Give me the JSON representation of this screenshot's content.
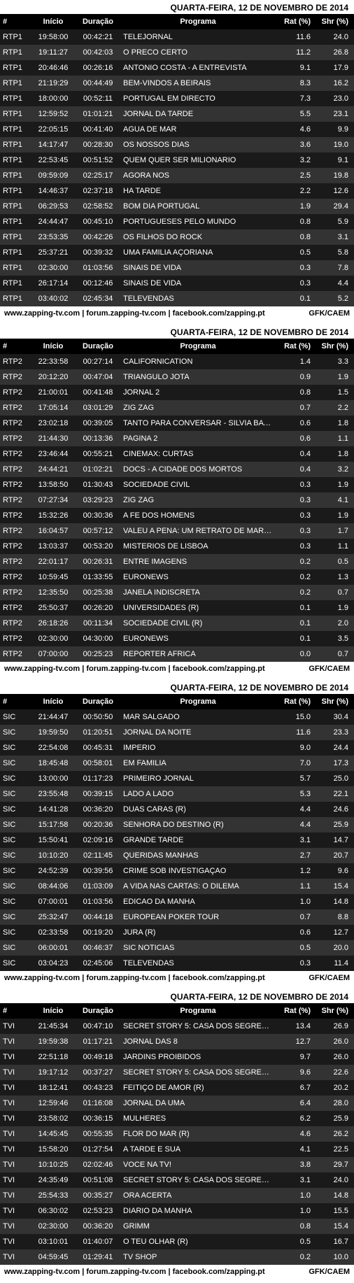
{
  "date_label": "QUARTA-FEIRA, 12 DE NOVEMBRO DE 2014",
  "headers": {
    "ch": "#",
    "start": "Início",
    "dur": "Duração",
    "prog": "Programa",
    "rat": "Rat (%)",
    "shr": "Shr (%)"
  },
  "footer_left": "www.zapping-tv.com | forum.zapping-tv.com | facebook.com/zapping.pt",
  "footer_right": "GFK/CAEM",
  "tables": [
    {
      "channel": "RTP1",
      "rows": [
        {
          "start": "19:58:00",
          "dur": "00:42:21",
          "prog": "TELEJORNAL",
          "rat": "11.6",
          "shr": "24.0"
        },
        {
          "start": "19:11:27",
          "dur": "00:42:03",
          "prog": "O PRECO CERTO",
          "rat": "11.2",
          "shr": "26.8"
        },
        {
          "start": "20:46:46",
          "dur": "00:26:16",
          "prog": "ANTONIO COSTA - A ENTREVISTA",
          "rat": "9.1",
          "shr": "17.9"
        },
        {
          "start": "21:19:29",
          "dur": "00:44:49",
          "prog": "BEM-VINDOS A BEIRAIS",
          "rat": "8.3",
          "shr": "16.2"
        },
        {
          "start": "18:00:00",
          "dur": "00:52:11",
          "prog": "PORTUGAL EM DIRECTO",
          "rat": "7.3",
          "shr": "23.0"
        },
        {
          "start": "12:59:52",
          "dur": "01:01:21",
          "prog": "JORNAL DA TARDE",
          "rat": "5.5",
          "shr": "23.1"
        },
        {
          "start": "22:05:15",
          "dur": "00:41:40",
          "prog": "AGUA DE MAR",
          "rat": "4.6",
          "shr": "9.9"
        },
        {
          "start": "14:17:47",
          "dur": "00:28:30",
          "prog": "OS NOSSOS DIAS",
          "rat": "3.6",
          "shr": "19.0"
        },
        {
          "start": "22:53:45",
          "dur": "00:51:52",
          "prog": "QUEM QUER SER MILIONARIO",
          "rat": "3.2",
          "shr": "9.1"
        },
        {
          "start": "09:59:09",
          "dur": "02:25:17",
          "prog": "AGORA NOS",
          "rat": "2.5",
          "shr": "19.8"
        },
        {
          "start": "14:46:37",
          "dur": "02:37:18",
          "prog": "HA TARDE",
          "rat": "2.2",
          "shr": "12.6"
        },
        {
          "start": "06:29:53",
          "dur": "02:58:52",
          "prog": "BOM DIA PORTUGAL",
          "rat": "1.9",
          "shr": "29.4"
        },
        {
          "start": "24:44:47",
          "dur": "00:45:10",
          "prog": "PORTUGUESES PELO MUNDO",
          "rat": "0.8",
          "shr": "5.9"
        },
        {
          "start": "23:53:35",
          "dur": "00:42:26",
          "prog": "OS FILHOS DO ROCK",
          "rat": "0.8",
          "shr": "3.1"
        },
        {
          "start": "25:37:21",
          "dur": "00:39:32",
          "prog": "UMA FAMILIA AÇORIANA",
          "rat": "0.5",
          "shr": "5.8"
        },
        {
          "start": "02:30:00",
          "dur": "01:03:56",
          "prog": "SINAIS DE VIDA",
          "rat": "0.3",
          "shr": "7.8"
        },
        {
          "start": "26:17:14",
          "dur": "00:12:46",
          "prog": "SINAIS DE VIDA",
          "rat": "0.3",
          "shr": "4.4"
        },
        {
          "start": "03:40:02",
          "dur": "02:45:34",
          "prog": "TELEVENDAS",
          "rat": "0.1",
          "shr": "5.2"
        }
      ]
    },
    {
      "channel": "RTP2",
      "rows": [
        {
          "start": "22:33:58",
          "dur": "00:27:14",
          "prog": "CALIFORNICATION",
          "rat": "1.4",
          "shr": "3.3"
        },
        {
          "start": "20:12:20",
          "dur": "00:47:04",
          "prog": "TRIANGULO JOTA",
          "rat": "0.9",
          "shr": "1.9"
        },
        {
          "start": "21:00:01",
          "dur": "00:41:48",
          "prog": "JORNAL 2",
          "rat": "0.8",
          "shr": "1.5"
        },
        {
          "start": "17:05:14",
          "dur": "03:01:29",
          "prog": "ZIG ZAG",
          "rat": "0.7",
          "shr": "2.2"
        },
        {
          "start": "23:02:18",
          "dur": "00:39:05",
          "prog": "TANTO PARA CONVERSAR - SILVIA BATISTA",
          "rat": "0.6",
          "shr": "1.8"
        },
        {
          "start": "21:44:30",
          "dur": "00:13:36",
          "prog": "PAGINA 2",
          "rat": "0.6",
          "shr": "1.1"
        },
        {
          "start": "23:46:44",
          "dur": "00:55:21",
          "prog": "CINEMAX: CURTAS",
          "rat": "0.4",
          "shr": "1.8"
        },
        {
          "start": "24:44:21",
          "dur": "01:02:21",
          "prog": "DOCS - A CIDADE DOS MORTOS",
          "rat": "0.4",
          "shr": "3.2"
        },
        {
          "start": "13:58:50",
          "dur": "01:30:43",
          "prog": "SOCIEDADE CIVIL",
          "rat": "0.3",
          "shr": "1.9"
        },
        {
          "start": "07:27:34",
          "dur": "03:29:23",
          "prog": "ZIG ZAG",
          "rat": "0.3",
          "shr": "4.1"
        },
        {
          "start": "15:32:26",
          "dur": "00:30:36",
          "prog": "A FE DOS HOMENS",
          "rat": "0.3",
          "shr": "1.9"
        },
        {
          "start": "16:04:57",
          "dur": "00:57:12",
          "prog": "VALEU A PENA: UM RETRATO DE MARIO...",
          "rat": "0.3",
          "shr": "1.7"
        },
        {
          "start": "13:03:37",
          "dur": "00:53:20",
          "prog": "MISTERIOS DE LISBOA",
          "rat": "0.3",
          "shr": "1.1"
        },
        {
          "start": "22:01:17",
          "dur": "00:26:31",
          "prog": "ENTRE IMAGENS",
          "rat": "0.2",
          "shr": "0.5"
        },
        {
          "start": "10:59:45",
          "dur": "01:33:55",
          "prog": "EURONEWS",
          "rat": "0.2",
          "shr": "1.3"
        },
        {
          "start": "12:35:50",
          "dur": "00:25:38",
          "prog": "JANELA INDISCRETA",
          "rat": "0.2",
          "shr": "0.7"
        },
        {
          "start": "25:50:37",
          "dur": "00:26:20",
          "prog": "UNIVERSIDADES (R)",
          "rat": "0.1",
          "shr": "1.9"
        },
        {
          "start": "26:18:26",
          "dur": "00:11:34",
          "prog": "SOCIEDADE CIVIL (R)",
          "rat": "0.1",
          "shr": "2.0"
        },
        {
          "start": "02:30:00",
          "dur": "04:30:00",
          "prog": "EURONEWS",
          "rat": "0.1",
          "shr": "3.5"
        },
        {
          "start": "07:00:00",
          "dur": "00:25:23",
          "prog": "REPORTER AFRICA",
          "rat": "0.0",
          "shr": "0.7"
        }
      ]
    },
    {
      "channel": "SIC",
      "rows": [
        {
          "start": "21:44:47",
          "dur": "00:50:50",
          "prog": "MAR SALGADO",
          "rat": "15.0",
          "shr": "30.4"
        },
        {
          "start": "19:59:50",
          "dur": "01:20:51",
          "prog": "JORNAL DA NOITE",
          "rat": "11.6",
          "shr": "23.3"
        },
        {
          "start": "22:54:08",
          "dur": "00:45:31",
          "prog": "IMPERIO",
          "rat": "9.0",
          "shr": "24.4"
        },
        {
          "start": "18:45:48",
          "dur": "00:58:01",
          "prog": "EM FAMILIA",
          "rat": "7.0",
          "shr": "17.3"
        },
        {
          "start": "13:00:00",
          "dur": "01:17:23",
          "prog": "PRIMEIRO JORNAL",
          "rat": "5.7",
          "shr": "25.0"
        },
        {
          "start": "23:55:48",
          "dur": "00:39:15",
          "prog": "LADO A LADO",
          "rat": "5.3",
          "shr": "22.1"
        },
        {
          "start": "14:41:28",
          "dur": "00:36:20",
          "prog": "DUAS CARAS (R)",
          "rat": "4.4",
          "shr": "24.6"
        },
        {
          "start": "15:17:58",
          "dur": "00:20:36",
          "prog": "SENHORA DO DESTINO (R)",
          "rat": "4.4",
          "shr": "25.9"
        },
        {
          "start": "15:50:41",
          "dur": "02:09:16",
          "prog": "GRANDE TARDE",
          "rat": "3.1",
          "shr": "14.7"
        },
        {
          "start": "10:10:20",
          "dur": "02:11:45",
          "prog": "QUERIDAS MANHAS",
          "rat": "2.7",
          "shr": "20.7"
        },
        {
          "start": "24:52:39",
          "dur": "00:39:56",
          "prog": "CRIME SOB INVESTIGAÇAO",
          "rat": "1.2",
          "shr": "9.6"
        },
        {
          "start": "08:44:06",
          "dur": "01:03:09",
          "prog": "A VIDA NAS CARTAS: O DILEMA",
          "rat": "1.1",
          "shr": "15.4"
        },
        {
          "start": "07:00:01",
          "dur": "01:03:56",
          "prog": "EDICAO DA MANHA",
          "rat": "1.0",
          "shr": "14.8"
        },
        {
          "start": "25:32:47",
          "dur": "00:44:18",
          "prog": "EUROPEAN POKER TOUR",
          "rat": "0.7",
          "shr": "8.8"
        },
        {
          "start": "02:33:58",
          "dur": "00:19:20",
          "prog": "JURA (R)",
          "rat": "0.6",
          "shr": "12.7"
        },
        {
          "start": "06:00:01",
          "dur": "00:46:37",
          "prog": "SIC NOTICIAS",
          "rat": "0.5",
          "shr": "20.0"
        },
        {
          "start": "03:04:23",
          "dur": "02:45:06",
          "prog": "TELEVENDAS",
          "rat": "0.3",
          "shr": "11.4"
        }
      ]
    },
    {
      "channel": "TVI",
      "rows": [
        {
          "start": "21:45:34",
          "dur": "00:47:10",
          "prog": "SECRET STORY 5: CASA DOS SEGREDOS -...",
          "rat": "13.4",
          "shr": "26.9"
        },
        {
          "start": "19:59:38",
          "dur": "01:17:21",
          "prog": "JORNAL DAS 8",
          "rat": "12.7",
          "shr": "26.0"
        },
        {
          "start": "22:51:18",
          "dur": "00:49:18",
          "prog": "JARDINS PROIBIDOS",
          "rat": "9.7",
          "shr": "26.0"
        },
        {
          "start": "19:17:12",
          "dur": "00:37:27",
          "prog": "SECRET STORY 5: CASA DOS SEGREDOS -...",
          "rat": "9.6",
          "shr": "22.6"
        },
        {
          "start": "18:12:41",
          "dur": "00:43:23",
          "prog": "FEITIÇO DE AMOR (R)",
          "rat": "6.7",
          "shr": "20.2"
        },
        {
          "start": "12:59:46",
          "dur": "01:16:08",
          "prog": "JORNAL DA UMA",
          "rat": "6.4",
          "shr": "28.0"
        },
        {
          "start": "23:58:02",
          "dur": "00:36:15",
          "prog": "MULHERES",
          "rat": "6.2",
          "shr": "25.9"
        },
        {
          "start": "14:45:45",
          "dur": "00:55:35",
          "prog": "FLOR DO MAR (R)",
          "rat": "4.6",
          "shr": "26.2"
        },
        {
          "start": "15:58:20",
          "dur": "01:27:54",
          "prog": "A TARDE E SUA",
          "rat": "4.1",
          "shr": "22.5"
        },
        {
          "start": "10:10:25",
          "dur": "02:02:46",
          "prog": "VOCE NA TV!",
          "rat": "3.8",
          "shr": "29.7"
        },
        {
          "start": "24:35:49",
          "dur": "00:51:08",
          "prog": "SECRET STORY 5: CASA DOS SEGREDOS -...",
          "rat": "3.1",
          "shr": "24.0"
        },
        {
          "start": "25:54:33",
          "dur": "00:35:27",
          "prog": "ORA ACERTA",
          "rat": "1.0",
          "shr": "14.8"
        },
        {
          "start": "06:30:02",
          "dur": "02:53:23",
          "prog": "DIARIO DA MANHA",
          "rat": "1.0",
          "shr": "15.5"
        },
        {
          "start": "02:30:00",
          "dur": "00:36:20",
          "prog": "GRIMM",
          "rat": "0.8",
          "shr": "15.4"
        },
        {
          "start": "03:10:01",
          "dur": "01:40:07",
          "prog": "O TEU OLHAR (R)",
          "rat": "0.5",
          "shr": "16.7"
        },
        {
          "start": "04:59:45",
          "dur": "01:29:41",
          "prog": "TV SHOP",
          "rat": "0.2",
          "shr": "10.0"
        }
      ]
    }
  ]
}
